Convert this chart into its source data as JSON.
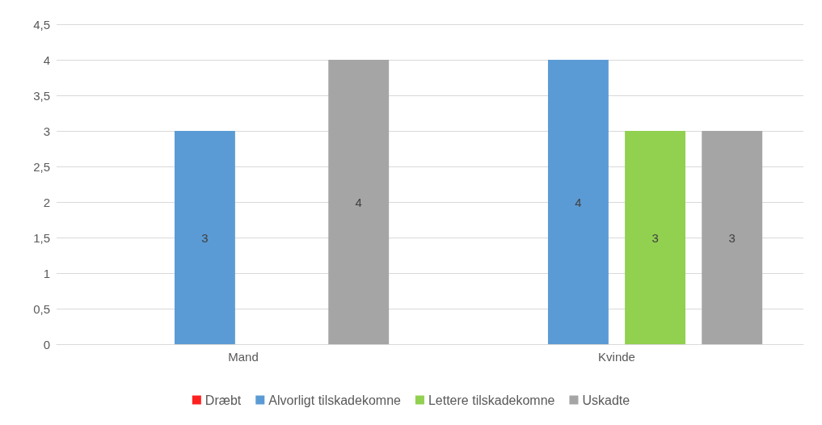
{
  "chart_data": {
    "type": "bar",
    "categories": [
      "Mand",
      "Kvinde"
    ],
    "series": [
      {
        "name": "Dræbt",
        "color": "#ff2020",
        "values": [
          null,
          null
        ]
      },
      {
        "name": "Alvorligt tilskadekomne",
        "color": "#5b9bd5",
        "values": [
          3,
          4
        ]
      },
      {
        "name": "Lettere tilskadekomne",
        "color": "#92d050",
        "values": [
          null,
          3
        ]
      },
      {
        "name": "Uskadte",
        "color": "#a5a5a5",
        "values": [
          4,
          3
        ]
      }
    ],
    "ylim": [
      0,
      4.5
    ],
    "yticks": [
      0,
      {
        "value": 0.5,
        "label": "0,5"
      },
      1,
      {
        "value": 1.5,
        "label": "1,5"
      },
      2,
      {
        "value": 2.5,
        "label": "2,5"
      },
      3,
      {
        "value": 3.5,
        "label": "3,5"
      },
      4,
      {
        "value": 4.5,
        "label": "4,5"
      }
    ],
    "grid": "y",
    "legend": "bottom",
    "data_labels": true
  }
}
